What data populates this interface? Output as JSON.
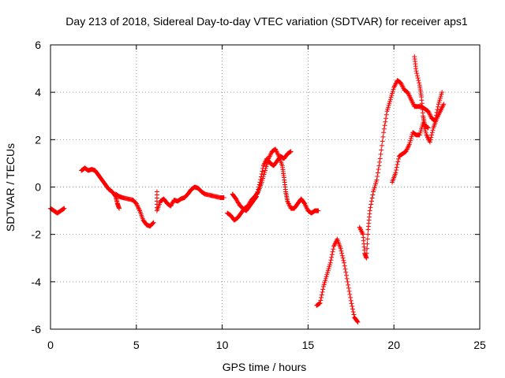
{
  "chart_data": {
    "type": "scatter",
    "title": "Day 213 of 2018, Sidereal Day-to-day VTEC variation (SDTVAR) for receiver aps1",
    "xlabel": "GPS time / hours",
    "ylabel": "SDTVAR / TECUs",
    "xlim": [
      0,
      25
    ],
    "ylim": [
      -6,
      6
    ],
    "xticks": [
      0,
      5,
      10,
      15,
      20,
      25
    ],
    "yticks": [
      -6,
      -4,
      -2,
      0,
      2,
      4,
      6
    ],
    "grid": true,
    "marker": "plus",
    "color": "#ff0000",
    "segments": [
      [
        [
          0.0,
          -0.9
        ],
        [
          0.2,
          -1.0
        ],
        [
          0.4,
          -1.1
        ],
        [
          0.6,
          -1.0
        ],
        [
          0.8,
          -0.9
        ]
      ],
      [
        [
          1.8,
          0.7
        ],
        [
          2.0,
          0.8
        ],
        [
          2.2,
          0.7
        ],
        [
          2.4,
          0.75
        ],
        [
          2.6,
          0.7
        ],
        [
          2.8,
          0.5
        ],
        [
          3.0,
          0.3
        ],
        [
          3.2,
          0.1
        ],
        [
          3.4,
          -0.1
        ],
        [
          3.6,
          -0.2
        ],
        [
          3.8,
          -0.4
        ],
        [
          3.9,
          -0.7
        ],
        [
          4.0,
          -0.9
        ]
      ],
      [
        [
          3.8,
          -0.3
        ],
        [
          4.0,
          -0.4
        ],
        [
          4.2,
          -0.45
        ],
        [
          4.5,
          -0.5
        ],
        [
          4.8,
          -0.55
        ],
        [
          5.0,
          -0.7
        ],
        [
          5.2,
          -1.0
        ],
        [
          5.4,
          -1.4
        ],
        [
          5.6,
          -1.6
        ],
        [
          5.8,
          -1.65
        ],
        [
          6.0,
          -1.5
        ]
      ],
      [
        [
          6.2,
          -0.2
        ],
        [
          6.2,
          -1.0
        ],
        [
          6.4,
          -0.6
        ],
        [
          6.6,
          -0.5
        ],
        [
          6.8,
          -0.7
        ],
        [
          7.0,
          -0.8
        ],
        [
          7.2,
          -0.55
        ],
        [
          7.4,
          -0.6
        ],
        [
          7.6,
          -0.5
        ],
        [
          7.8,
          -0.45
        ],
        [
          8.0,
          -0.3
        ],
        [
          8.2,
          -0.1
        ],
        [
          8.4,
          0.0
        ],
        [
          8.6,
          -0.05
        ],
        [
          8.8,
          -0.2
        ],
        [
          9.0,
          -0.3
        ],
        [
          9.3,
          -0.35
        ],
        [
          9.6,
          -0.4
        ],
        [
          9.9,
          -0.45
        ],
        [
          10.1,
          -0.45
        ]
      ],
      [
        [
          10.3,
          -1.1
        ],
        [
          10.5,
          -1.2
        ],
        [
          10.7,
          -1.4
        ],
        [
          10.9,
          -1.3
        ],
        [
          11.1,
          -1.1
        ],
        [
          11.3,
          -0.9
        ],
        [
          11.5,
          -0.8
        ],
        [
          11.7,
          -0.55
        ],
        [
          11.9,
          -0.4
        ],
        [
          12.1,
          -0.2
        ],
        [
          12.3,
          0.2
        ],
        [
          12.5,
          0.7
        ],
        [
          12.7,
          1.2
        ],
        [
          12.9,
          1.5
        ],
        [
          13.1,
          1.6
        ],
        [
          13.3,
          1.3
        ],
        [
          13.5,
          0.9
        ],
        [
          13.6,
          0.4
        ],
        [
          13.7,
          -0.2
        ],
        [
          13.8,
          -0.6
        ],
        [
          14.0,
          -0.9
        ],
        [
          14.2,
          -0.9
        ],
        [
          14.4,
          -0.7
        ],
        [
          14.6,
          -0.5
        ],
        [
          14.8,
          -0.7
        ],
        [
          15.0,
          -1.0
        ],
        [
          15.2,
          -1.1
        ],
        [
          15.4,
          -1.0
        ],
        [
          15.6,
          -1.0
        ]
      ],
      [
        [
          10.6,
          -0.3
        ],
        [
          10.8,
          -0.5
        ],
        [
          11.0,
          -0.75
        ],
        [
          11.2,
          -0.9
        ],
        [
          11.4,
          -1.0
        ],
        [
          11.6,
          -0.8
        ],
        [
          11.8,
          -0.6
        ],
        [
          12.0,
          -0.4
        ],
        [
          12.2,
          0.2
        ],
        [
          12.4,
          0.9
        ],
        [
          12.6,
          1.2
        ],
        [
          12.8,
          1.0
        ],
        [
          13.0,
          0.9
        ],
        [
          13.2,
          1.1
        ],
        [
          13.4,
          1.3
        ],
        [
          13.6,
          1.2
        ],
        [
          13.8,
          1.4
        ],
        [
          14.0,
          1.5
        ]
      ],
      [
        [
          15.5,
          -5.0
        ],
        [
          15.7,
          -4.9
        ],
        [
          15.9,
          -4.2
        ],
        [
          16.1,
          -3.7
        ],
        [
          16.3,
          -3.2
        ],
        [
          16.5,
          -2.5
        ],
        [
          16.7,
          -2.2
        ],
        [
          16.9,
          -2.6
        ],
        [
          17.1,
          -3.2
        ],
        [
          17.3,
          -4.0
        ],
        [
          17.5,
          -4.8
        ],
        [
          17.7,
          -5.5
        ],
        [
          17.9,
          -5.7
        ]
      ],
      [
        [
          18.0,
          -1.7
        ],
        [
          18.2,
          -2.0
        ],
        [
          18.3,
          -2.8
        ],
        [
          18.4,
          -3.0
        ],
        [
          18.5,
          -1.8
        ],
        [
          18.6,
          -1.0
        ],
        [
          18.8,
          -0.2
        ],
        [
          19.0,
          0.3
        ],
        [
          19.2,
          1.2
        ],
        [
          19.4,
          2.3
        ],
        [
          19.6,
          3.2
        ],
        [
          19.8,
          3.7
        ],
        [
          20.0,
          4.2
        ],
        [
          20.2,
          4.5
        ],
        [
          20.4,
          4.4
        ],
        [
          20.6,
          4.1
        ],
        [
          20.8,
          4.0
        ],
        [
          21.0,
          3.7
        ],
        [
          21.2,
          3.4
        ],
        [
          21.4,
          3.4
        ],
        [
          21.6,
          3.4
        ],
        [
          21.8,
          3.3
        ],
        [
          22.0,
          3.2
        ],
        [
          22.2,
          2.9
        ],
        [
          22.4,
          2.8
        ],
        [
          22.6,
          3.5
        ],
        [
          22.8,
          4.0
        ]
      ],
      [
        [
          19.9,
          0.2
        ],
        [
          20.1,
          0.6
        ],
        [
          20.3,
          1.3
        ],
        [
          20.5,
          1.4
        ],
        [
          20.7,
          1.5
        ],
        [
          20.9,
          1.8
        ],
        [
          21.1,
          2.3
        ],
        [
          21.3,
          2.2
        ],
        [
          21.5,
          2.2
        ],
        [
          21.7,
          2.7
        ],
        [
          21.9,
          2.2
        ],
        [
          22.1,
          1.9
        ],
        [
          22.3,
          2.5
        ],
        [
          22.5,
          2.9
        ],
        [
          22.7,
          3.2
        ],
        [
          22.9,
          3.5
        ]
      ],
      [
        [
          21.2,
          5.5
        ],
        [
          21.3,
          4.9
        ],
        [
          21.5,
          4.3
        ],
        [
          21.6,
          3.8
        ],
        [
          21.7,
          3.0
        ],
        [
          21.8,
          2.6
        ],
        [
          22.0,
          2.5
        ]
      ]
    ]
  }
}
